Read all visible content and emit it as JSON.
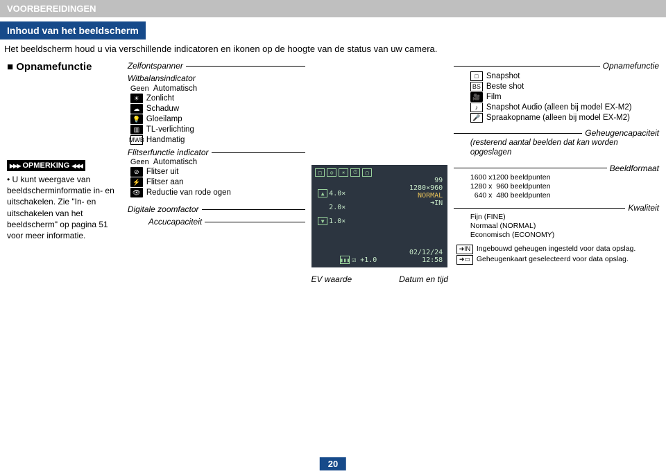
{
  "header": "VOORBEREIDINGEN",
  "section": "Inhoud van het beeldscherm",
  "intro": "Het beeldscherm houd u via verschillende indicatoren en ikonen op de hoogte van de status van uw camera.",
  "left": {
    "mode_title": "Opnamefunctie",
    "note_badge": "OPMERKING",
    "note_text": "U kunt weergave van beeldscherminformatie in- en uitschakelen. Zie \"In- en uitschakelen van het beeldscherm\" op pagina 51 voor meer informatie."
  },
  "mid": {
    "zelfontspanner": "Zelfontspanner",
    "witbalans": {
      "title": "Witbalansindicator",
      "items": [
        {
          "icon_text": "Geen",
          "label": "Automatisch",
          "plain": true
        },
        {
          "icon_text": "☀",
          "label": "Zonlicht"
        },
        {
          "icon_text": "☁",
          "label": "Schaduw"
        },
        {
          "icon_text": "💡",
          "label": "Gloeilamp"
        },
        {
          "icon_text": "▥",
          "label": "TL-verlichting"
        },
        {
          "icon_text": "MWB",
          "label": "Handmatig",
          "white": true
        }
      ]
    },
    "flits": {
      "title": "Flitserfunctie indicator",
      "items": [
        {
          "icon_text": "Geen",
          "label": "Automatisch",
          "plain": true
        },
        {
          "icon_text": "⊘",
          "label": "Flitser uit"
        },
        {
          "icon_text": "⚡",
          "label": "Flitser aan"
        },
        {
          "icon_text": "👁",
          "label": "Reductie van rode ogen"
        }
      ]
    },
    "zoom": "Digitale zoomfactor",
    "accu": "Accucapaciteit"
  },
  "screen": {
    "top_icons": [
      "□",
      "⊘",
      "☀",
      "⏱",
      "▢"
    ],
    "n99": "99",
    "res": "1280×960",
    "normal": "NORMAL",
    "in": "➜IN",
    "z4": "4.0×",
    "z2": "2.0×",
    "z1": "1.0×",
    "ev": "☑ +1.0",
    "date": "02/12/24",
    "time": "12:58",
    "bat": "▮▮▮",
    "ev_label": "EV waarde",
    "date_label": "Datum en tijd"
  },
  "right": {
    "opname": {
      "title": "Opnamefunctie",
      "items": [
        {
          "icon": "□",
          "label": "Snapshot",
          "white": true
        },
        {
          "icon": "BS",
          "label": "Beste shot",
          "white": true
        },
        {
          "icon": "🎥",
          "label": "Film"
        },
        {
          "icon": "♪",
          "label": "Snapshot Audio (alleen bij model EX-M2)",
          "white": true
        },
        {
          "icon": "🎤",
          "label": "Spraakopname (alleen bij model EX-M2)",
          "white": true
        }
      ]
    },
    "capacity": {
      "title": "Geheugencapaciteit",
      "desc": "(resterend aantal beelden dat kan worden opgeslagen"
    },
    "format": {
      "title": "Beeldformaat",
      "lines": [
        "1600 x1200 beeldpunten",
        "1280 x  960 beeldpunten",
        "  640 x  480 beeldpunten"
      ]
    },
    "quality": {
      "title": "Kwaliteit",
      "lines": [
        "Fijn (FINE)",
        "Normaal (NORMAL)",
        "Economisch (ECONOMY)"
      ]
    },
    "memory": [
      {
        "icon": "➜IN",
        "text": "Ingebouwd geheugen ingesteld voor data opslag.",
        "white": true
      },
      {
        "icon": "➜▭",
        "text": "Geheugenkaart geselecteerd voor data opslag.",
        "white": true
      }
    ]
  },
  "page": "20"
}
